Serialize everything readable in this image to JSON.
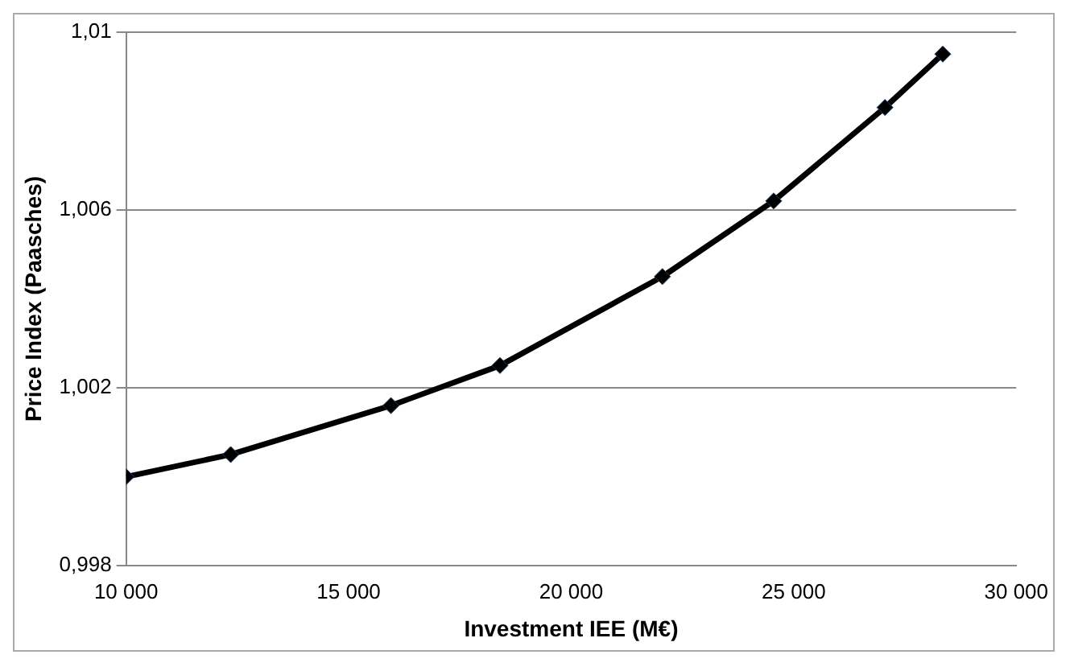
{
  "chart_data": {
    "type": "line",
    "xlabel": "Investment IEE (M€)",
    "ylabel": "Price Index (Paasches)",
    "x": [
      10000,
      12350,
      15950,
      18400,
      22050,
      24550,
      27050,
      28350
    ],
    "series": [
      {
        "color": "#000000",
        "values": [
          1.0,
          1.0005,
          1.0016,
          1.0025,
          1.0045,
          1.0062,
          1.0083,
          1.0095
        ]
      }
    ],
    "xlim": [
      10000,
      30000
    ],
    "xticks": [
      {
        "value": 10000,
        "label": "10 000"
      },
      {
        "value": 15000,
        "label": "15 000"
      },
      {
        "value": 20000,
        "label": "20 000"
      },
      {
        "value": 25000,
        "label": "25 000"
      },
      {
        "value": 30000,
        "label": "30 000"
      }
    ],
    "ylim": [
      0.998,
      1.01
    ],
    "yticks": [
      {
        "value": 0.998,
        "label": "0,998"
      },
      {
        "value": 1.002,
        "label": "1,002"
      },
      {
        "value": 1.006,
        "label": "1,006"
      },
      {
        "value": 1.01,
        "label": "1,01"
      }
    ],
    "grid": "y",
    "legend": false,
    "marker": "diamond",
    "line_style": "solid"
  }
}
